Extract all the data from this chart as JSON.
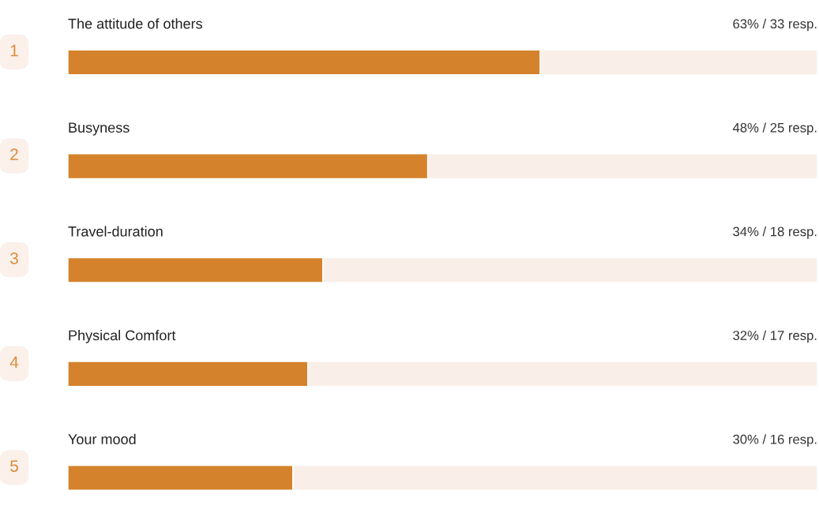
{
  "chart_data": {
    "type": "bar",
    "orientation": "horizontal",
    "categories": [
      "The attitude of others",
      "Busyness",
      "Travel-duration",
      "Physical Comfort",
      "Your mood"
    ],
    "values": [
      63,
      48,
      34,
      32,
      30
    ],
    "value_labels": [
      "63% / 33 resp.",
      "48% / 25 resp.",
      "34% / 18 resp.",
      "32% / 17 resp.",
      "30% / 16 resp."
    ],
    "color": "#d4822b",
    "xlim": [
      0,
      100
    ],
    "annotations": [
      "1",
      "2",
      "3",
      "4",
      "5"
    ]
  }
}
